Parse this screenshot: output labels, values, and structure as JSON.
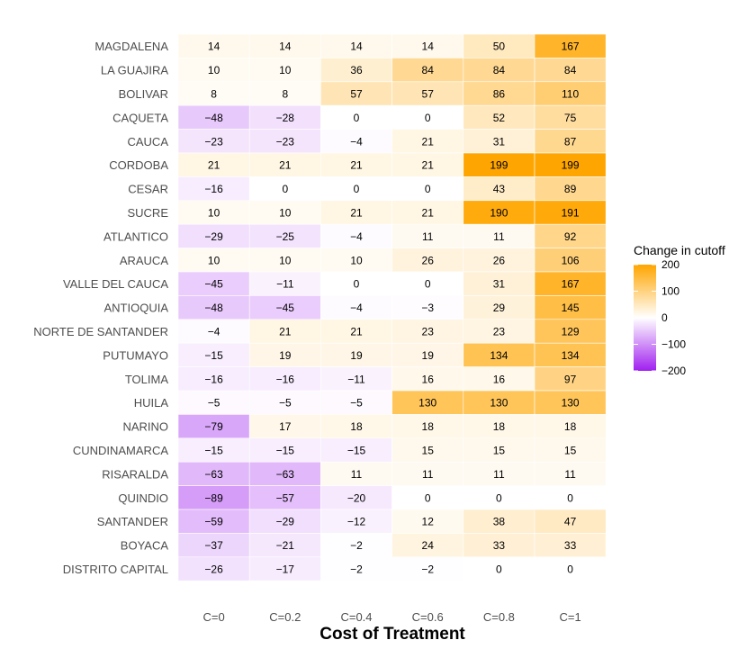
{
  "chart_data": {
    "type": "heatmap",
    "title": "",
    "xlabel": "Cost of Treatment",
    "ylabel": "",
    "x": [
      "C=0",
      "C=0.2",
      "C=0.4",
      "C=0.6",
      "C=0.8",
      "C=1"
    ],
    "rows": [
      {
        "label": "MAGDALENA",
        "values": [
          14,
          14,
          14,
          14,
          50,
          167
        ]
      },
      {
        "label": "LA GUAJIRA",
        "values": [
          10,
          10,
          36,
          84,
          84,
          84
        ]
      },
      {
        "label": "BOLIVAR",
        "values": [
          8,
          8,
          57,
          57,
          86,
          110
        ]
      },
      {
        "label": "CAQUETA",
        "values": [
          -48,
          -28,
          0,
          0,
          52,
          75
        ]
      },
      {
        "label": "CAUCA",
        "values": [
          -23,
          -23,
          -4,
          21,
          31,
          87
        ]
      },
      {
        "label": "CORDOBA",
        "values": [
          21,
          21,
          21,
          21,
          199,
          199
        ]
      },
      {
        "label": "CESAR",
        "values": [
          -16,
          0,
          0,
          0,
          43,
          89
        ]
      },
      {
        "label": "SUCRE",
        "values": [
          10,
          10,
          21,
          21,
          190,
          191
        ]
      },
      {
        "label": "ATLANTICO",
        "values": [
          -29,
          -25,
          -4,
          11,
          11,
          92
        ]
      },
      {
        "label": "ARAUCA",
        "values": [
          10,
          10,
          10,
          26,
          26,
          106
        ]
      },
      {
        "label": "VALLE DEL CAUCA",
        "values": [
          -45,
          -11,
          0,
          0,
          31,
          167
        ]
      },
      {
        "label": "ANTIOQUIA",
        "values": [
          -48,
          -45,
          -4,
          -3,
          29,
          145
        ]
      },
      {
        "label": "NORTE DE SANTANDER",
        "values": [
          -4,
          21,
          21,
          23,
          23,
          129
        ]
      },
      {
        "label": "PUTUMAYO",
        "values": [
          -15,
          19,
          19,
          19,
          134,
          134
        ]
      },
      {
        "label": "TOLIMA",
        "values": [
          -16,
          -16,
          -11,
          16,
          16,
          97
        ]
      },
      {
        "label": "HUILA",
        "values": [
          -5,
          -5,
          -5,
          130,
          130,
          130
        ]
      },
      {
        "label": "NARINO",
        "values": [
          -79,
          17,
          18,
          18,
          18,
          18
        ]
      },
      {
        "label": "CUNDINAMARCA",
        "values": [
          -15,
          -15,
          -15,
          15,
          15,
          15
        ]
      },
      {
        "label": "RISARALDA",
        "values": [
          -63,
          -63,
          11,
          11,
          11,
          11
        ]
      },
      {
        "label": "QUINDIO",
        "values": [
          -89,
          -57,
          -20,
          0,
          0,
          0
        ]
      },
      {
        "label": "SANTANDER",
        "values": [
          -59,
          -29,
          -12,
          12,
          38,
          47
        ]
      },
      {
        "label": "BOYACA",
        "values": [
          -37,
          -21,
          -2,
          24,
          33,
          33
        ]
      },
      {
        "label": "DISTRITO CAPITAL",
        "values": [
          -26,
          -17,
          -2,
          -2,
          0,
          0
        ]
      }
    ],
    "legend": {
      "title": "Change in cutoff",
      "ticks": [
        200,
        100,
        0,
        -100,
        -200
      ],
      "range": [
        -200,
        200
      ],
      "placement": "right"
    },
    "colors": {
      "high": "#ffa500",
      "mid": "#ffffff",
      "low": "#a020f0",
      "text": "#000000",
      "axis_text": "#4d4d4d"
    },
    "grid": false
  }
}
